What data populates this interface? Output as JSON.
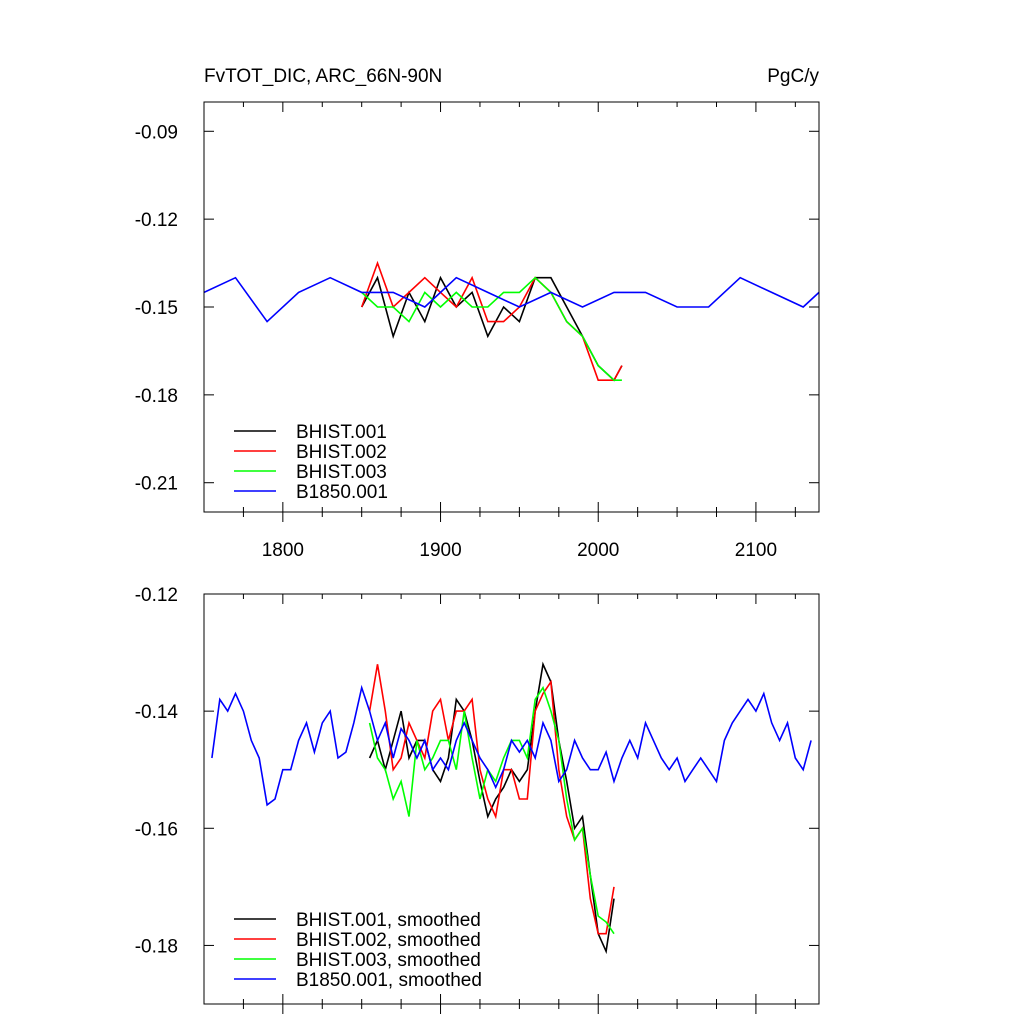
{
  "figure": {
    "title_left": "FvTOT_DIC, ARC_66N-90N",
    "title_right": "PgC/y"
  },
  "chart_data": [
    {
      "type": "line",
      "panel": "annual",
      "xlim": [
        1750,
        2140
      ],
      "ylim": [
        -0.22,
        -0.08
      ],
      "xticks": [
        1800,
        1900,
        2000,
        2100
      ],
      "xtick_labels": [
        "1800",
        "1900",
        "2000",
        "2100"
      ],
      "yticks": [
        -0.09,
        -0.12,
        -0.15,
        -0.18,
        -0.21
      ],
      "ytick_labels": [
        "-0.09",
        "-0.12",
        "-0.15",
        "-0.18",
        "-0.21"
      ],
      "legend_position": "lower-left",
      "series": [
        {
          "name": "BHIST.001",
          "color": "#000000",
          "x": [
            1850,
            1860,
            1870,
            1880,
            1890,
            1900,
            1910,
            1920,
            1930,
            1940,
            1950,
            1960,
            1970,
            1980,
            1990,
            2000,
            2010,
            2015
          ],
          "y": [
            -0.15,
            -0.14,
            -0.16,
            -0.145,
            -0.155,
            -0.14,
            -0.15,
            -0.145,
            -0.16,
            -0.15,
            -0.155,
            -0.14,
            -0.14,
            -0.15,
            -0.16,
            -0.17,
            -0.175,
            -0.17
          ]
        },
        {
          "name": "BHIST.002",
          "color": "#ff0000",
          "x": [
            1850,
            1860,
            1870,
            1880,
            1890,
            1900,
            1910,
            1920,
            1930,
            1940,
            1950,
            1960,
            1970,
            1980,
            1990,
            2000,
            2010,
            2015
          ],
          "y": [
            -0.15,
            -0.135,
            -0.15,
            -0.145,
            -0.14,
            -0.145,
            -0.15,
            -0.14,
            -0.155,
            -0.155,
            -0.15,
            -0.14,
            -0.145,
            -0.155,
            -0.16,
            -0.175,
            -0.175,
            -0.17
          ]
        },
        {
          "name": "BHIST.003",
          "color": "#00ff00",
          "x": [
            1850,
            1860,
            1870,
            1880,
            1890,
            1900,
            1910,
            1920,
            1930,
            1940,
            1950,
            1960,
            1970,
            1980,
            1990,
            2000,
            2010,
            2015
          ],
          "y": [
            -0.145,
            -0.15,
            -0.15,
            -0.155,
            -0.145,
            -0.15,
            -0.145,
            -0.15,
            -0.15,
            -0.145,
            -0.145,
            -0.14,
            -0.145,
            -0.155,
            -0.16,
            -0.17,
            -0.175,
            -0.175
          ]
        },
        {
          "name": "B1850.001",
          "color": "#0000ff",
          "x": [
            1750,
            1770,
            1790,
            1810,
            1830,
            1850,
            1870,
            1890,
            1910,
            1930,
            1950,
            1970,
            1990,
            2010,
            2030,
            2050,
            2070,
            2090,
            2110,
            2130,
            2140
          ],
          "y": [
            -0.145,
            -0.14,
            -0.155,
            -0.145,
            -0.14,
            -0.145,
            -0.145,
            -0.15,
            -0.14,
            -0.145,
            -0.15,
            -0.145,
            -0.15,
            -0.145,
            -0.145,
            -0.15,
            -0.15,
            -0.14,
            -0.145,
            -0.15,
            -0.145
          ]
        }
      ]
    },
    {
      "type": "line",
      "panel": "smoothed",
      "xlim": [
        1750,
        2140
      ],
      "ylim": [
        -0.19,
        -0.12
      ],
      "yticks": [
        -0.12,
        -0.14,
        -0.16,
        -0.18
      ],
      "ytick_labels": [
        "-0.12",
        "-0.14",
        "-0.16",
        "-0.18"
      ],
      "legend_position": "lower-left",
      "series": [
        {
          "name": "BHIST.001, smoothed",
          "color": "#000000",
          "x": [
            1855,
            1860,
            1865,
            1870,
            1875,
            1880,
            1885,
            1890,
            1895,
            1900,
            1905,
            1910,
            1915,
            1920,
            1925,
            1930,
            1935,
            1940,
            1945,
            1950,
            1955,
            1960,
            1965,
            1970,
            1975,
            1980,
            1985,
            1990,
            1995,
            2000,
            2005,
            2010
          ],
          "y": [
            -0.148,
            -0.145,
            -0.15,
            -0.145,
            -0.14,
            -0.148,
            -0.145,
            -0.145,
            -0.15,
            -0.152,
            -0.148,
            -0.138,
            -0.14,
            -0.145,
            -0.152,
            -0.158,
            -0.155,
            -0.153,
            -0.15,
            -0.152,
            -0.15,
            -0.14,
            -0.132,
            -0.135,
            -0.145,
            -0.152,
            -0.16,
            -0.158,
            -0.168,
            -0.178,
            -0.181,
            -0.172
          ]
        },
        {
          "name": "BHIST.002, smoothed",
          "color": "#ff0000",
          "x": [
            1855,
            1860,
            1865,
            1870,
            1875,
            1880,
            1885,
            1890,
            1895,
            1900,
            1905,
            1910,
            1915,
            1920,
            1925,
            1930,
            1935,
            1940,
            1945,
            1950,
            1955,
            1960,
            1965,
            1970,
            1975,
            1980,
            1985,
            1990,
            1995,
            2000,
            2005,
            2010
          ],
          "y": [
            -0.14,
            -0.132,
            -0.14,
            -0.15,
            -0.148,
            -0.142,
            -0.145,
            -0.148,
            -0.14,
            -0.138,
            -0.145,
            -0.14,
            -0.14,
            -0.138,
            -0.15,
            -0.155,
            -0.158,
            -0.15,
            -0.15,
            -0.155,
            -0.155,
            -0.14,
            -0.137,
            -0.135,
            -0.15,
            -0.158,
            -0.162,
            -0.16,
            -0.172,
            -0.178,
            -0.178,
            -0.17
          ]
        },
        {
          "name": "BHIST.003, smoothed",
          "color": "#00ff00",
          "x": [
            1855,
            1860,
            1865,
            1870,
            1875,
            1880,
            1885,
            1890,
            1895,
            1900,
            1905,
            1910,
            1915,
            1920,
            1925,
            1930,
            1935,
            1940,
            1945,
            1950,
            1955,
            1960,
            1965,
            1970,
            1975,
            1980,
            1985,
            1990,
            1995,
            2000,
            2005,
            2010
          ],
          "y": [
            -0.142,
            -0.148,
            -0.15,
            -0.155,
            -0.152,
            -0.158,
            -0.145,
            -0.15,
            -0.148,
            -0.145,
            -0.145,
            -0.15,
            -0.14,
            -0.148,
            -0.155,
            -0.15,
            -0.152,
            -0.148,
            -0.145,
            -0.145,
            -0.148,
            -0.138,
            -0.136,
            -0.14,
            -0.145,
            -0.155,
            -0.162,
            -0.16,
            -0.168,
            -0.175,
            -0.176,
            -0.178
          ]
        },
        {
          "name": "B1850.001, smoothed",
          "color": "#0000ff",
          "x": [
            1755,
            1760,
            1765,
            1770,
            1775,
            1780,
            1785,
            1790,
            1795,
            1800,
            1805,
            1810,
            1815,
            1820,
            1825,
            1830,
            1835,
            1840,
            1845,
            1850,
            1855,
            1860,
            1865,
            1870,
            1875,
            1880,
            1885,
            1890,
            1895,
            1900,
            1905,
            1910,
            1915,
            1920,
            1925,
            1930,
            1935,
            1940,
            1945,
            1950,
            1955,
            1960,
            1965,
            1970,
            1975,
            1980,
            1985,
            1990,
            1995,
            2000,
            2005,
            2010,
            2015,
            2020,
            2025,
            2030,
            2035,
            2040,
            2045,
            2050,
            2055,
            2060,
            2065,
            2070,
            2075,
            2080,
            2085,
            2090,
            2095,
            2100,
            2105,
            2110,
            2115,
            2120,
            2125,
            2130,
            2135
          ],
          "y": [
            -0.148,
            -0.138,
            -0.14,
            -0.137,
            -0.14,
            -0.145,
            -0.148,
            -0.156,
            -0.155,
            -0.15,
            -0.15,
            -0.145,
            -0.142,
            -0.147,
            -0.142,
            -0.14,
            -0.148,
            -0.147,
            -0.142,
            -0.136,
            -0.14,
            -0.145,
            -0.142,
            -0.148,
            -0.143,
            -0.145,
            -0.148,
            -0.145,
            -0.15,
            -0.148,
            -0.15,
            -0.145,
            -0.142,
            -0.145,
            -0.148,
            -0.15,
            -0.153,
            -0.15,
            -0.145,
            -0.147,
            -0.145,
            -0.148,
            -0.142,
            -0.145,
            -0.152,
            -0.15,
            -0.145,
            -0.148,
            -0.15,
            -0.15,
            -0.147,
            -0.152,
            -0.148,
            -0.145,
            -0.148,
            -0.142,
            -0.145,
            -0.148,
            -0.15,
            -0.148,
            -0.152,
            -0.15,
            -0.148,
            -0.15,
            -0.152,
            -0.145,
            -0.142,
            -0.14,
            -0.138,
            -0.14,
            -0.137,
            -0.142,
            -0.145,
            -0.142,
            -0.148,
            -0.15,
            -0.145
          ]
        }
      ]
    }
  ]
}
